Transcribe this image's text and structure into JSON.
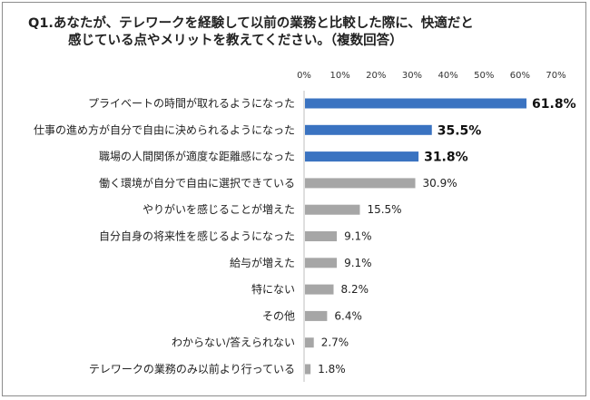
{
  "title_line1": "Q1.あなたが、テレワークを経験して以前の業務と比較した際に、快適だと",
  "title_line2": "感じている点やメリットを教えてください。（複数回答）",
  "colors": {
    "highlight": "#3a73c1",
    "normal": "#a6a6a6"
  },
  "chart_data": {
    "type": "bar",
    "orientation": "horizontal",
    "title": "Q1.あなたが、テレワークを経験して以前の業務と比較した際に、快適だと感じている点やメリットを教えてください。（複数回答）",
    "xlim": [
      0,
      70
    ],
    "xticks": [
      0,
      10,
      20,
      30,
      40,
      50,
      60,
      70
    ],
    "tick_suffix": "%",
    "value_suffix": "%",
    "grid": false,
    "categories": [
      "プライベートの時間が取れるようになった",
      "仕事の進め方が自分で自由に決められるようになった",
      "職場の人間関係が適度な距離感になった",
      "働く環境が自分で自由に選択できている",
      "やりがいを感じることが増えた",
      "自分自身の将来性を感じるようになった",
      "給与が増えた",
      "特にない",
      "その他",
      "わからない/答えられない",
      "テレワークの業務のみ以前より行っている"
    ],
    "values": [
      61.8,
      35.5,
      31.8,
      30.9,
      15.5,
      9.1,
      9.1,
      8.2,
      6.4,
      2.7,
      1.8
    ],
    "highlighted": [
      true,
      true,
      true,
      false,
      false,
      false,
      false,
      false,
      false,
      false,
      false
    ]
  }
}
